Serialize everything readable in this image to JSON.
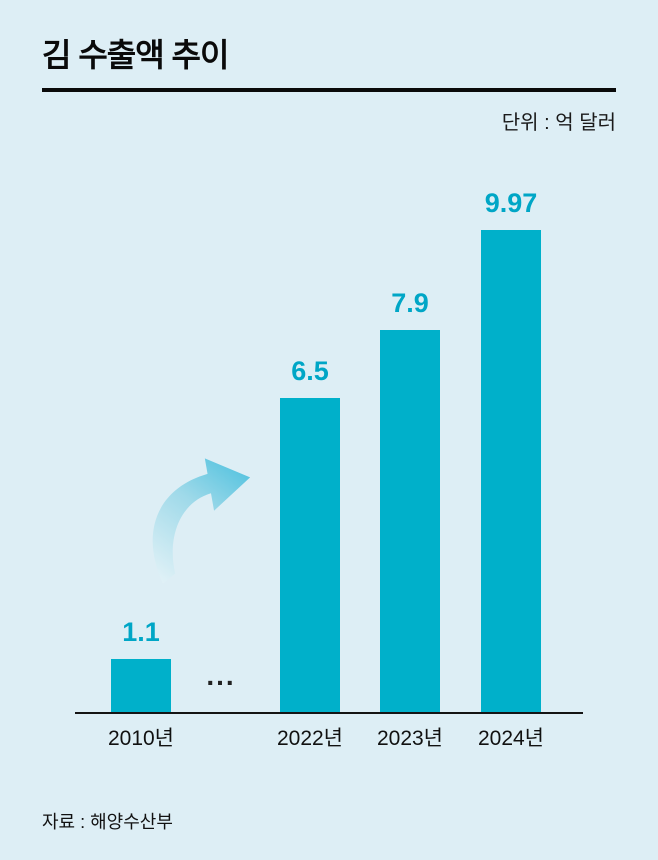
{
  "page": {
    "title": "김 수출액 추이",
    "unit_label": "단위 : 억 달러",
    "source": "자료 : 해양수산부"
  },
  "chart_data": {
    "type": "bar",
    "title": "김 수출액 추이",
    "unit": "억 달러",
    "categories": [
      "2010년",
      "2022년",
      "2023년",
      "2024년"
    ],
    "values": [
      1.1,
      6.5,
      7.9,
      9.97
    ],
    "value_labels": [
      "1.1",
      "6.5",
      "7.9",
      "9.97"
    ],
    "gap_ellipsis": "...",
    "ylim": [
      0,
      10.5
    ],
    "grid": false,
    "legend": false,
    "bar_color": "#00b0ca",
    "value_label_color": "#00a6c6",
    "background_color": "#ddeef5",
    "source": "자료 : 해양수산부"
  }
}
